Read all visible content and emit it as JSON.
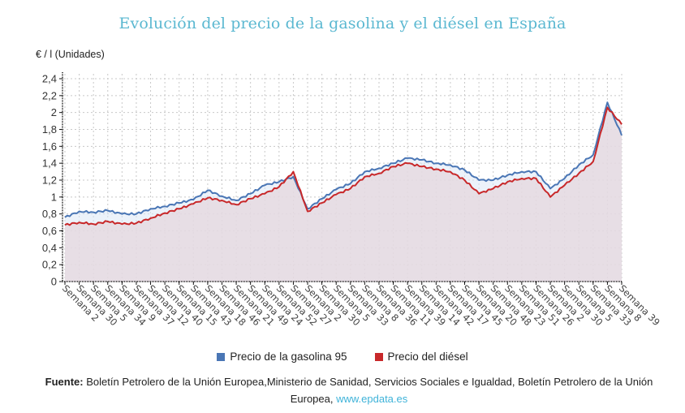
{
  "title": "Evolución del precio de la gasolina y el diésel en España",
  "legend": {
    "items": [
      {
        "label": "Precio de la gasolina 95",
        "color": "#4a76b5"
      },
      {
        "label": "Precio del diésel",
        "color": "#c8282a"
      }
    ]
  },
  "footer": {
    "source_label": "Fuente:",
    "source_text": " Boletín Petrolero de la Unión Europea,Ministerio de Sanidad, Servicios Sociales e Igualdad, Boletín Petrolero de la Unión Europea, ",
    "link_text": "www.epdata.es"
  },
  "chart_data": {
    "type": "line",
    "title": "Evolución del precio de la gasolina y el diésel en España",
    "xlabel": "",
    "ylabel": "€ / l (Unidades)",
    "ylim": [
      0,
      2.4
    ],
    "yticks": [
      "0",
      "0,2",
      "0,4",
      "0,6",
      "0,8",
      "1",
      "1,2",
      "1,4",
      "1,6",
      "1,8",
      "2",
      "2,2",
      "2,4"
    ],
    "grid": true,
    "legend_position": "bottom",
    "categories": [
      "Semana 2",
      "Semana 30",
      "Semana 5",
      "Semana 34",
      "Semana 9",
      "Semana 37",
      "Semana 12",
      "Semana 40",
      "Semana 15",
      "Semana 43",
      "Semana 18",
      "Semana 46",
      "Semana 21",
      "Semana 49",
      "Semana 24",
      "Semana 52",
      "Semana 27",
      "Semana 2",
      "Semana 30",
      "Semana 5",
      "Semana 33",
      "Semana 8",
      "Semana 36",
      "Semana 11",
      "Semana 39",
      "Semana 14",
      "Semana 42",
      "Semana 17",
      "Semana 45",
      "Semana 20",
      "Semana 48",
      "Semana 23",
      "Semana 51",
      "Semana 26",
      "Semana 2",
      "Semana 30",
      "Semana 5",
      "Semana 33",
      "Semana 8",
      "Semana 39"
    ],
    "series": [
      {
        "name": "Precio de la gasolina 95",
        "color": "#4a76b5",
        "values": [
          0.76,
          0.83,
          0.82,
          0.84,
          0.8,
          0.8,
          0.86,
          0.89,
          0.93,
          0.97,
          1.08,
          1.01,
          0.96,
          1.04,
          1.14,
          1.18,
          1.24,
          0.86,
          0.98,
          1.09,
          1.16,
          1.3,
          1.34,
          1.4,
          1.46,
          1.44,
          1.4,
          1.38,
          1.32,
          1.2,
          1.2,
          1.26,
          1.3,
          1.3,
          1.1,
          1.22,
          1.38,
          1.5,
          2.12,
          1.73
        ]
      },
      {
        "name": "Precio del diésel",
        "color": "#c8282a",
        "values": [
          0.67,
          0.7,
          0.68,
          0.71,
          0.68,
          0.69,
          0.75,
          0.81,
          0.86,
          0.92,
          0.99,
          0.96,
          0.91,
          0.98,
          1.04,
          1.12,
          1.3,
          0.83,
          0.93,
          1.03,
          1.1,
          1.24,
          1.28,
          1.36,
          1.4,
          1.36,
          1.33,
          1.3,
          1.2,
          1.04,
          1.1,
          1.18,
          1.22,
          1.22,
          1.0,
          1.14,
          1.28,
          1.42,
          2.06,
          1.86
        ]
      }
    ]
  }
}
